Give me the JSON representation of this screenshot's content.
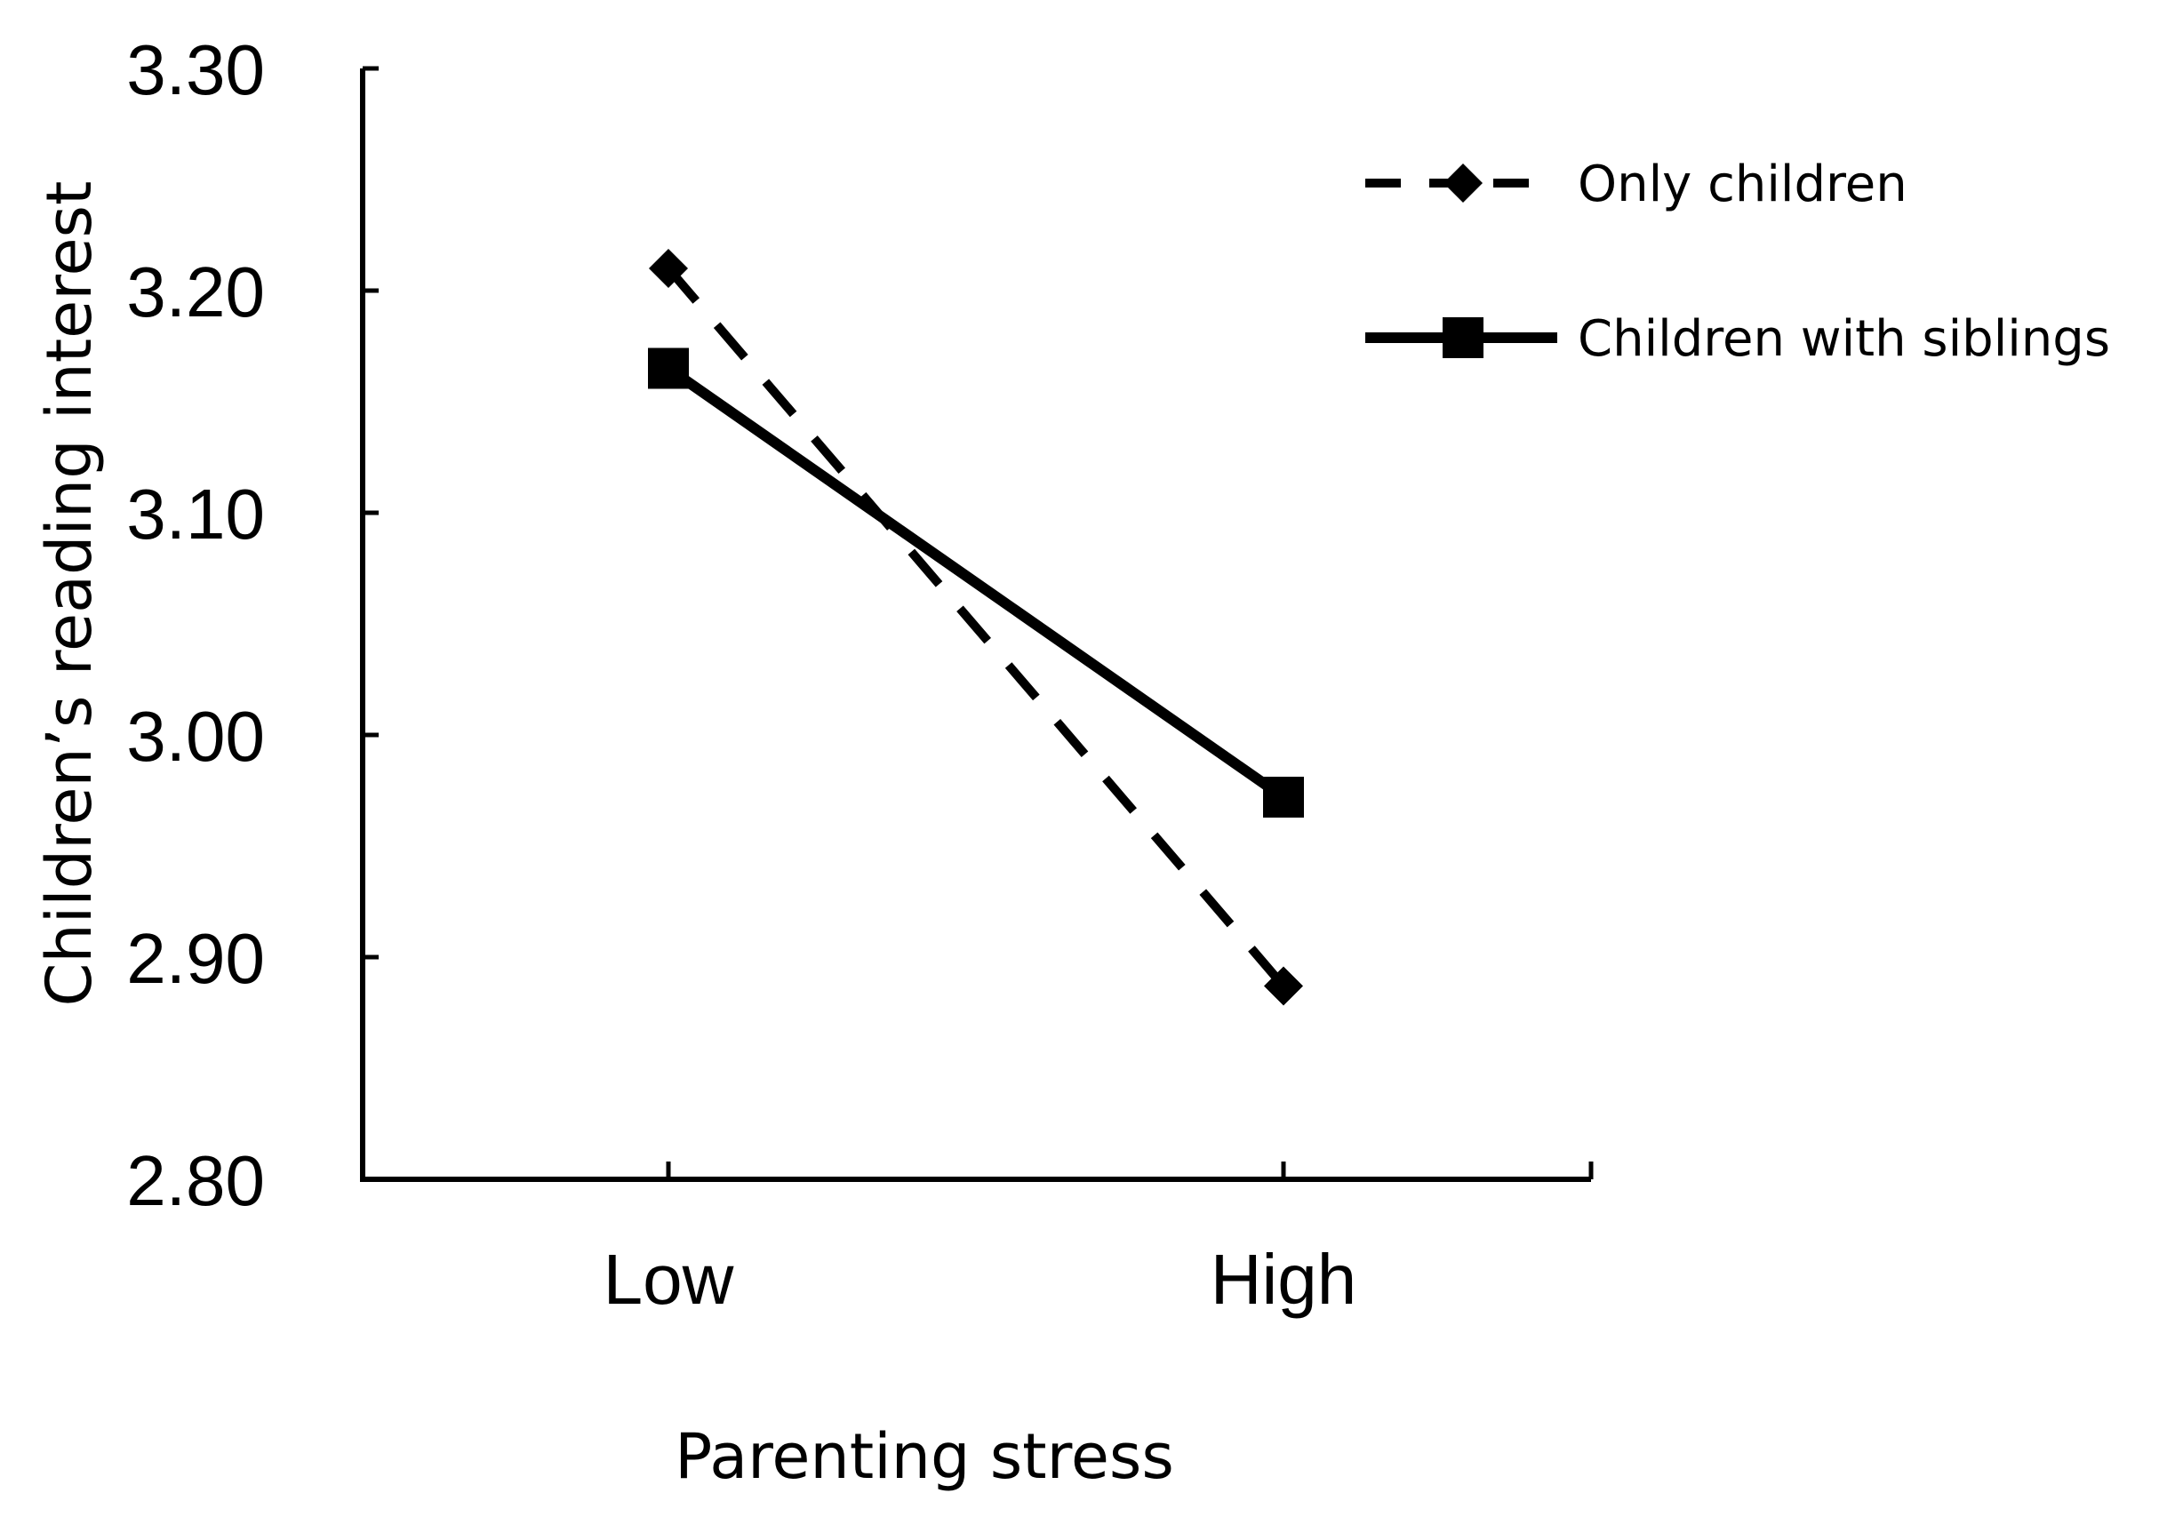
{
  "chart_data": {
    "type": "line",
    "title": "",
    "xlabel": "Parenting stress",
    "ylabel": "Children’s reading interest",
    "categories": [
      "Low",
      "High"
    ],
    "ylim": [
      2.8,
      3.3
    ],
    "yticks": [
      "2.80",
      "2.90",
      "3.00",
      "3.10",
      "3.20",
      "3.30"
    ],
    "grid": false,
    "legend_position": "top-right",
    "series": [
      {
        "name": "Only children",
        "values": [
          3.21,
          2.887
        ],
        "line": "dashed",
        "marker": "diamond",
        "color": "#000000"
      },
      {
        "name": "Children with siblings",
        "values": [
          3.165,
          2.972
        ],
        "line": "solid",
        "marker": "square",
        "color": "#000000"
      }
    ]
  }
}
